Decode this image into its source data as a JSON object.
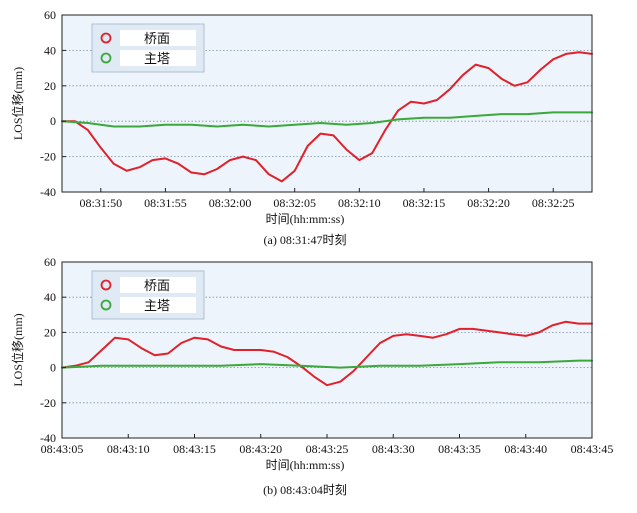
{
  "chart_data": [
    {
      "type": "line",
      "caption": "(a) 08:31:47时刻",
      "xlabel": "时间(hh:mm:ss)",
      "ylabel": "LOS位移(mm)",
      "xlim": [
        "08:31:47",
        "08:32:28"
      ],
      "ylim": [
        -40,
        60
      ],
      "yticks": [
        -40,
        -20,
        0,
        20,
        40,
        60
      ],
      "xticks": [
        "08:31:50",
        "08:31:55",
        "08:32:00",
        "08:32:05",
        "08:32:10",
        "08:32:15",
        "08:32:20",
        "08:32:25"
      ],
      "grid": "horizontal-dotted",
      "legend_position": "top-left",
      "series": [
        {
          "name": "桥面",
          "color": "#e0202a",
          "points": [
            [
              "08:31:47",
              0
            ],
            [
              "08:31:48",
              0
            ],
            [
              "08:31:49",
              -5
            ],
            [
              "08:31:50",
              -15
            ],
            [
              "08:31:51",
              -24
            ],
            [
              "08:31:52",
              -28
            ],
            [
              "08:31:53",
              -26
            ],
            [
              "08:31:54",
              -22
            ],
            [
              "08:31:55",
              -21
            ],
            [
              "08:31:56",
              -24
            ],
            [
              "08:31:57",
              -29
            ],
            [
              "08:31:58",
              -30
            ],
            [
              "08:31:59",
              -27
            ],
            [
              "08:32:00",
              -22
            ],
            [
              "08:32:01",
              -20
            ],
            [
              "08:32:02",
              -22
            ],
            [
              "08:32:03",
              -30
            ],
            [
              "08:32:04",
              -34
            ],
            [
              "08:32:05",
              -28
            ],
            [
              "08:32:06",
              -14
            ],
            [
              "08:32:07",
              -7
            ],
            [
              "08:32:08",
              -8
            ],
            [
              "08:32:09",
              -16
            ],
            [
              "08:32:10",
              -22
            ],
            [
              "08:32:11",
              -18
            ],
            [
              "08:32:12",
              -5
            ],
            [
              "08:32:13",
              6
            ],
            [
              "08:32:14",
              11
            ],
            [
              "08:32:15",
              10
            ],
            [
              "08:32:16",
              12
            ],
            [
              "08:32:17",
              18
            ],
            [
              "08:32:18",
              26
            ],
            [
              "08:32:19",
              32
            ],
            [
              "08:32:20",
              30
            ],
            [
              "08:32:21",
              24
            ],
            [
              "08:32:22",
              20
            ],
            [
              "08:32:23",
              22
            ],
            [
              "08:32:24",
              29
            ],
            [
              "08:32:25",
              35
            ],
            [
              "08:32:26",
              38
            ],
            [
              "08:32:27",
              39
            ],
            [
              "08:32:28",
              38
            ]
          ]
        },
        {
          "name": "主塔",
          "color": "#3aa83a",
          "points": [
            [
              "08:31:47",
              0
            ],
            [
              "08:31:49",
              -1
            ],
            [
              "08:31:51",
              -3
            ],
            [
              "08:31:53",
              -3
            ],
            [
              "08:31:55",
              -2
            ],
            [
              "08:31:57",
              -2
            ],
            [
              "08:31:59",
              -3
            ],
            [
              "08:32:01",
              -2
            ],
            [
              "08:32:03",
              -3
            ],
            [
              "08:32:05",
              -2
            ],
            [
              "08:32:07",
              -1
            ],
            [
              "08:32:09",
              -2
            ],
            [
              "08:32:11",
              -1
            ],
            [
              "08:32:13",
              1
            ],
            [
              "08:32:15",
              2
            ],
            [
              "08:32:17",
              2
            ],
            [
              "08:32:19",
              3
            ],
            [
              "08:32:21",
              4
            ],
            [
              "08:32:23",
              4
            ],
            [
              "08:32:25",
              5
            ],
            [
              "08:32:27",
              5
            ],
            [
              "08:32:28",
              5
            ]
          ]
        }
      ]
    },
    {
      "type": "line",
      "caption": "(b) 08:43:04时刻",
      "xlabel": "时间(hh:mm:ss)",
      "ylabel": "LOS位移(mm)",
      "xlim": [
        "08:43:05",
        "08:43:45"
      ],
      "ylim": [
        -40,
        60
      ],
      "yticks": [
        -40,
        -20,
        0,
        20,
        40,
        60
      ],
      "xticks": [
        "08:43:05",
        "08:43:10",
        "08:43:15",
        "08:43:20",
        "08:43:25",
        "08:43:30",
        "08:43:35",
        "08:43:40",
        "08:43:45"
      ],
      "grid": "horizontal-dotted",
      "legend_position": "top-left",
      "series": [
        {
          "name": "桥面",
          "color": "#e0202a",
          "points": [
            [
              "08:43:05",
              0
            ],
            [
              "08:43:06",
              1
            ],
            [
              "08:43:07",
              3
            ],
            [
              "08:43:08",
              10
            ],
            [
              "08:43:09",
              17
            ],
            [
              "08:43:10",
              16
            ],
            [
              "08:43:11",
              11
            ],
            [
              "08:43:12",
              7
            ],
            [
              "08:43:13",
              8
            ],
            [
              "08:43:14",
              14
            ],
            [
              "08:43:15",
              17
            ],
            [
              "08:43:16",
              16
            ],
            [
              "08:43:17",
              12
            ],
            [
              "08:43:18",
              10
            ],
            [
              "08:43:19",
              10
            ],
            [
              "08:43:20",
              10
            ],
            [
              "08:43:21",
              9
            ],
            [
              "08:43:22",
              6
            ],
            [
              "08:43:23",
              1
            ],
            [
              "08:43:24",
              -5
            ],
            [
              "08:43:25",
              -10
            ],
            [
              "08:43:26",
              -8
            ],
            [
              "08:43:27",
              -2
            ],
            [
              "08:43:28",
              6
            ],
            [
              "08:43:29",
              14
            ],
            [
              "08:43:30",
              18
            ],
            [
              "08:43:31",
              19
            ],
            [
              "08:43:32",
              18
            ],
            [
              "08:43:33",
              17
            ],
            [
              "08:43:34",
              19
            ],
            [
              "08:43:35",
              22
            ],
            [
              "08:43:36",
              22
            ],
            [
              "08:43:37",
              21
            ],
            [
              "08:43:38",
              20
            ],
            [
              "08:43:39",
              19
            ],
            [
              "08:43:40",
              18
            ],
            [
              "08:43:41",
              20
            ],
            [
              "08:43:42",
              24
            ],
            [
              "08:43:43",
              26
            ],
            [
              "08:43:44",
              25
            ],
            [
              "08:43:45",
              25
            ]
          ]
        },
        {
          "name": "主塔",
          "color": "#3aa83a",
          "points": [
            [
              "08:43:05",
              0
            ],
            [
              "08:43:08",
              1
            ],
            [
              "08:43:11",
              1
            ],
            [
              "08:43:14",
              1
            ],
            [
              "08:43:17",
              1
            ],
            [
              "08:43:20",
              2
            ],
            [
              "08:43:23",
              1
            ],
            [
              "08:43:26",
              0
            ],
            [
              "08:43:29",
              1
            ],
            [
              "08:43:32",
              1
            ],
            [
              "08:43:35",
              2
            ],
            [
              "08:43:38",
              3
            ],
            [
              "08:43:41",
              3
            ],
            [
              "08:43:44",
              4
            ],
            [
              "08:43:45",
              4
            ]
          ]
        }
      ]
    }
  ]
}
